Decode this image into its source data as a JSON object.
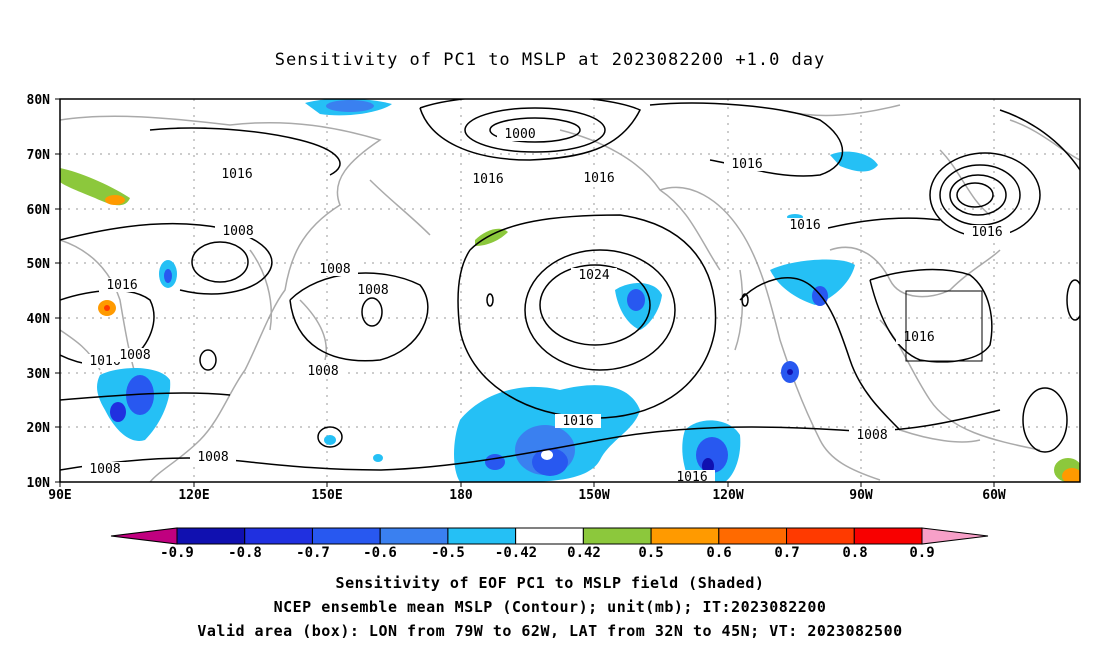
{
  "title": "Sensitivity of PC1 to MSLP at 2023082200 +1.0 day",
  "map": {
    "lon_range": [
      "90E",
      "40W"
    ],
    "lat_range": [
      "10N",
      "80N"
    ],
    "lat_labels": [
      "80N",
      "70N",
      "60N",
      "50N",
      "40N",
      "30N",
      "20N",
      "10N"
    ],
    "lon_labels": [
      "90E",
      "120E",
      "150E",
      "180",
      "150W",
      "120W",
      "90W",
      "60W"
    ],
    "contour_labels": [
      {
        "text": "1000"
      },
      {
        "text": "1016"
      },
      {
        "text": "1016"
      },
      {
        "text": "1016"
      },
      {
        "text": "1016"
      },
      {
        "text": "1008"
      },
      {
        "text": "1016"
      },
      {
        "text": "1024"
      },
      {
        "text": "1016"
      },
      {
        "text": "1008"
      },
      {
        "text": "1016"
      },
      {
        "text": "1008"
      },
      {
        "text": "1016"
      },
      {
        "text": "1016"
      },
      {
        "text": "1008"
      },
      {
        "text": "1008"
      },
      {
        "text": "1016"
      },
      {
        "text": "1008"
      },
      {
        "text": "1008"
      },
      {
        "text": "1016"
      }
    ],
    "valid_box": {
      "lon_from": "79W",
      "lon_to": "62W",
      "lat_from": "32N",
      "lat_to": "45N"
    }
  },
  "colorbar": {
    "labels": [
      "-0.9",
      "-0.8",
      "-0.7",
      "-0.6",
      "-0.5",
      "-0.42",
      "0.42",
      "0.5",
      "0.6",
      "0.7",
      "0.8",
      "0.9"
    ],
    "colors": [
      "#c0007f",
      "#1010b0",
      "#2030e0",
      "#2858f0",
      "#3a80f0",
      "#25c0f5",
      "#ffffff",
      "#8cc83c",
      "#ff9a00",
      "#ff6a00",
      "#ff3a00",
      "#f80000",
      "#f7a0c8"
    ]
  },
  "captions": {
    "line1": "Sensitivity of EOF PC1 to MSLP field (Shaded)",
    "line2": "NCEP ensemble mean MSLP (Contour); unit(mb); IT:2023082200",
    "line3": "Valid area (box): LON from 79W to 62W, LAT from 32N to 45N; VT: 2023082500"
  }
}
